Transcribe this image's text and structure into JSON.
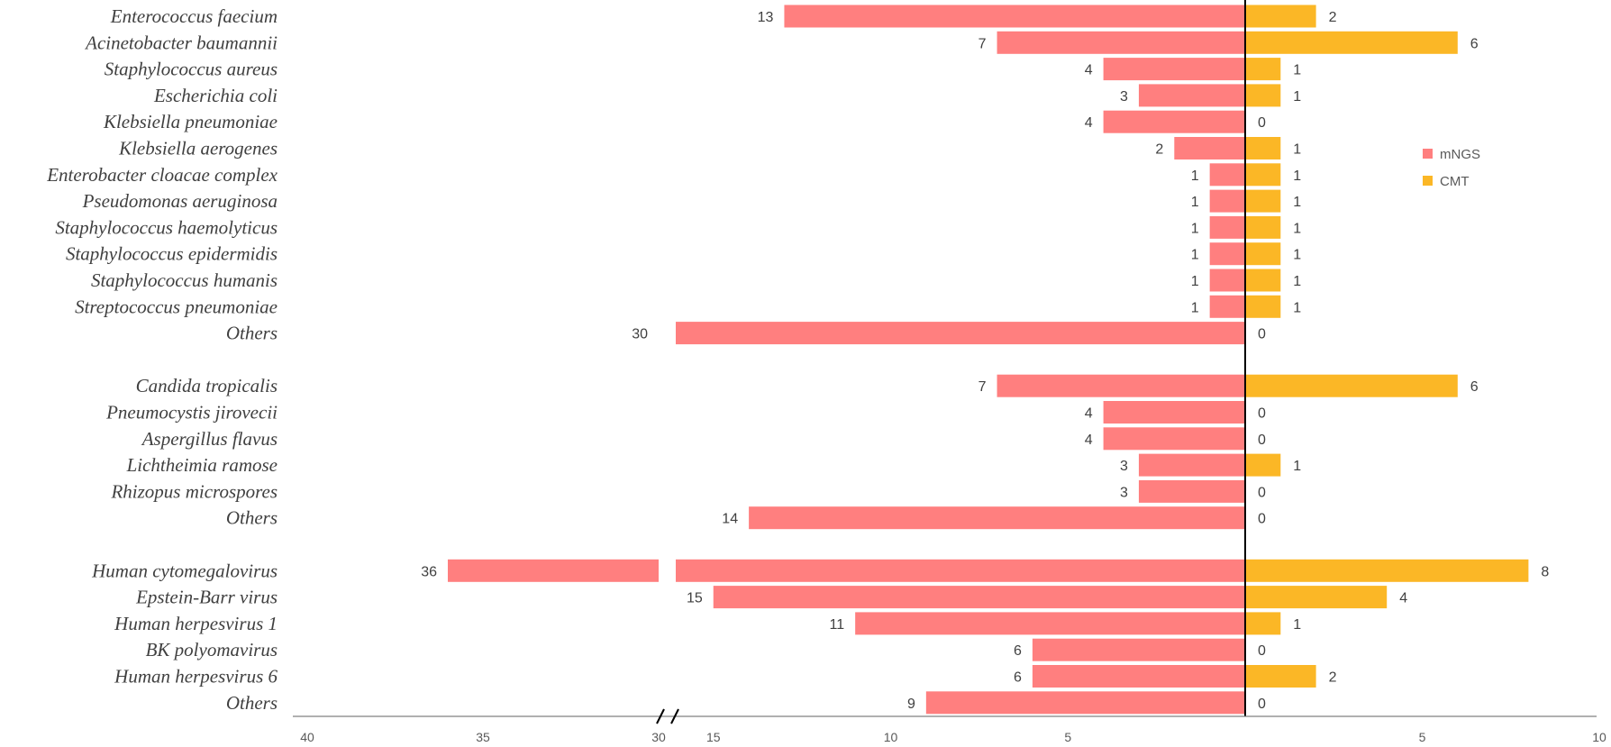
{
  "chart_data": {
    "type": "bar",
    "orientation": "horizontal-diverging",
    "colors": {
      "mNGS": "#ff7f7f",
      "CMT": "#fbb726"
    },
    "legend": {
      "position": "right",
      "entries": [
        "mNGS",
        "CMT"
      ]
    },
    "left_axis_ticks": [
      "40",
      "35",
      "30",
      "15",
      "10",
      "5"
    ],
    "right_axis_ticks": [
      "5",
      "10"
    ],
    "axis_break": {
      "between": [
        15,
        30
      ]
    },
    "categories": [
      "Enterococcus faecium",
      "Acinetobacter baumannii",
      "Staphylococcus aureus",
      "Escherichia coli",
      "Klebsiella pneumoniae",
      "Klebsiella aerogenes",
      "Enterobacter cloacae complex",
      "Pseudomonas aeruginosa",
      "Staphylococcus haemolyticus",
      "Staphylococcus epidermidis",
      "Staphylococcus humanis",
      "Streptococcus pneumoniae",
      "Others",
      "Candida tropicalis",
      "Pneumocystis jirovecii",
      "Aspergillus flavus",
      "Lichtheimia ramose",
      "Rhizopus microspores",
      "Others",
      "Human cytomegalovirus",
      "Epstein-Barr virus",
      "Human herpesvirus 1",
      "BK polyomavirus",
      "Human herpesvirus 6",
      "Others"
    ],
    "groups": [
      13,
      6,
      6
    ],
    "series": [
      {
        "name": "mNGS",
        "values": [
          13,
          7,
          4,
          3,
          4,
          2,
          1,
          1,
          1,
          1,
          1,
          1,
          30,
          7,
          4,
          4,
          3,
          3,
          14,
          36,
          15,
          11,
          6,
          6,
          9
        ]
      },
      {
        "name": "CMT",
        "values": [
          2,
          6,
          1,
          1,
          0,
          1,
          1,
          1,
          1,
          1,
          1,
          1,
          0,
          6,
          0,
          0,
          1,
          0,
          0,
          8,
          4,
          1,
          0,
          2,
          0
        ]
      }
    ]
  }
}
